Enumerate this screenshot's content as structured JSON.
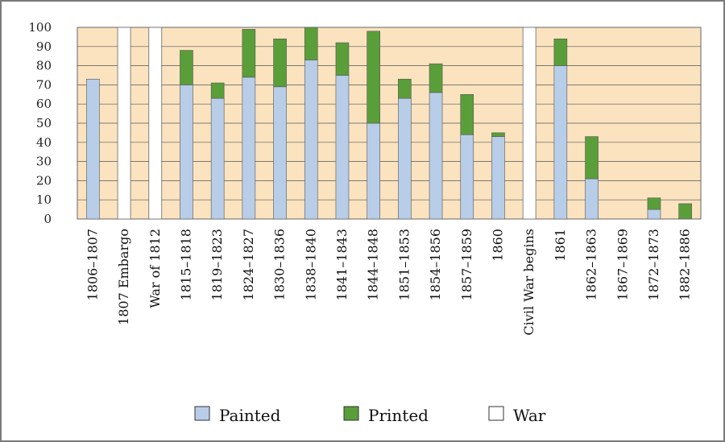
{
  "chart_data": {
    "type": "bar",
    "stacked": true,
    "categories": [
      "1806–1807",
      "1807 Embargo",
      "War of 1812",
      "1815–1818",
      "1819–1823",
      "1824–1827",
      "1830–1836",
      "1838–1840",
      "1841–1843",
      "1844–1848",
      "1851–1853",
      "1854–1856",
      "1857–1859",
      "1860",
      "Civil War begins",
      "1861",
      "1862–1863",
      "1867–1869",
      "1872–1873",
      "1882–1886"
    ],
    "series": [
      {
        "name": "Painted",
        "color": "#b8cde8",
        "values": [
          73,
          0,
          0,
          70,
          63,
          74,
          69,
          83,
          75,
          50,
          63,
          66,
          44,
          43,
          0,
          80,
          21,
          0,
          5,
          0
        ]
      },
      {
        "name": "Printed",
        "color": "#5a9e3a",
        "values": [
          0,
          0,
          0,
          18,
          8,
          25,
          25,
          17,
          17,
          48,
          10,
          15,
          21,
          2,
          0,
          14,
          22,
          0,
          6,
          8
        ]
      },
      {
        "name": "War",
        "color": "#ffffff",
        "values": [
          0,
          100,
          100,
          0,
          0,
          0,
          0,
          0,
          0,
          0,
          0,
          0,
          0,
          0,
          100,
          0,
          0,
          0,
          0,
          0
        ]
      }
    ],
    "ylim": [
      0,
      100
    ],
    "yticks": [
      "0",
      "10",
      "20",
      "30",
      "40",
      "50",
      "60",
      "70",
      "80",
      "90",
      "100"
    ],
    "plot_background": "#fbe3bf",
    "grid": true,
    "legend_position": "bottom"
  }
}
